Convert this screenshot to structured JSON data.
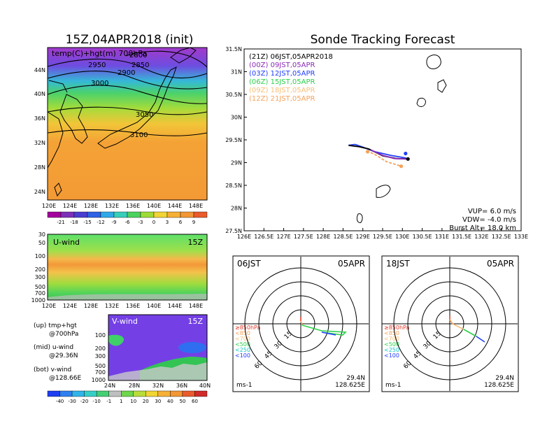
{
  "colors": {
    "purple": "#8c2ab8",
    "pink": "#d65aa5",
    "orange": "#f5a25a",
    "orange_light": "#f8c07a",
    "green": "#2bd14a",
    "blue": "#1f3cff",
    "red": "#e23a2a",
    "black": "#000000"
  },
  "top_left": {
    "title": "15Z,04APR2018 (init)",
    "label": "temp(C)+hgt(m) 700hPa",
    "y_ticks": [
      "44N",
      "40N",
      "36N",
      "32N",
      "28N",
      "24N"
    ],
    "x_ticks": [
      "120E",
      "124E",
      "128E",
      "132E",
      "136E",
      "140E",
      "144E",
      "148E"
    ],
    "contours": [
      "2800",
      "2850",
      "2900",
      "2950",
      "3000",
      "3050",
      "3100"
    ],
    "colorbar_ticks": [
      "-21",
      "-18",
      "-15",
      "-12",
      "-9",
      "-6",
      "-3",
      "0",
      "3",
      "6",
      "9"
    ]
  },
  "mid_left": {
    "label": "U-wind",
    "time": "15Z",
    "y_ticks": [
      "30",
      "50",
      "100",
      "200",
      "300",
      "500",
      "700",
      "1000"
    ],
    "x_ticks": [
      "120E",
      "124E",
      "128E",
      "132E",
      "136E",
      "140E",
      "144E",
      "148E"
    ]
  },
  "bot_left": {
    "label": "V-wind",
    "time": "15Z",
    "y_ticks": [
      "100",
      "200",
      "300",
      "500",
      "700",
      "1000"
    ],
    "x_ticks": [
      "24N",
      "28N",
      "32N",
      "36N",
      "40N"
    ],
    "colorbar_ticks": [
      "-40",
      "-30",
      "-20",
      "-10",
      "-1",
      "1",
      "10",
      "20",
      "30",
      "40",
      "50",
      "60"
    ]
  },
  "legend_notes": [
    {
      "line1": "(up) tmp+hgt",
      "line2": "@700hPa"
    },
    {
      "line1": "(mid) u-wind",
      "line2": "@29.36N"
    },
    {
      "line1": "(bot) v-wind",
      "line2": "@128.66E"
    }
  ],
  "chart_data": {
    "type": "line",
    "title": "Sonde Tracking Forecast",
    "x_ticks": [
      "126E",
      "126.5E",
      "127E",
      "127.5E",
      "128E",
      "128.5E",
      "129E",
      "129.5E",
      "130E",
      "130.5E",
      "131E",
      "131.5E",
      "132E",
      "132.5E",
      "133E"
    ],
    "y_ticks": [
      "31.5N",
      "31N",
      "30.5N",
      "30N",
      "29.5N",
      "29N",
      "28.5N",
      "28N",
      "27.5N"
    ],
    "xlim": [
      126,
      133
    ],
    "ylim": [
      27.5,
      31.5
    ],
    "legend_placement": "top-left",
    "legend": [
      {
        "code": "(21Z)",
        "time": "06JST,05APR2018",
        "color": "#000000"
      },
      {
        "code": "(00Z)",
        "time": "09JST,05APR",
        "color": "#8c2ab8"
      },
      {
        "code": "(03Z)",
        "time": "12JST,05APR",
        "color": "#1f3cff"
      },
      {
        "code": "(06Z)",
        "time": "15JST,05APR",
        "color": "#2bd14a"
      },
      {
        "code": "(09Z)",
        "time": "18JST,05APR",
        "color": "#f8c07a"
      },
      {
        "code": "(12Z)",
        "time": "21JST,05APR",
        "color": "#f5a25a"
      }
    ],
    "series": [
      {
        "color": "#1f3cff",
        "points": [
          [
            128.64,
            29.38
          ],
          [
            128.8,
            29.4
          ],
          [
            129.0,
            29.34
          ],
          [
            129.3,
            29.24
          ],
          [
            129.7,
            29.16
          ],
          [
            130.1,
            29.1
          ]
        ]
      },
      {
        "color": "#000000",
        "points": [
          [
            128.64,
            29.38
          ],
          [
            128.9,
            29.35
          ],
          [
            129.15,
            29.3
          ],
          [
            129.5,
            29.15
          ],
          [
            129.85,
            29.09
          ],
          [
            130.14,
            29.08
          ]
        ]
      },
      {
        "color": "#8c2ab8",
        "points": [
          [
            129.2,
            29.28
          ],
          [
            129.5,
            29.16
          ],
          [
            129.8,
            29.09
          ],
          [
            130.1,
            29.08
          ]
        ]
      },
      {
        "color": "#f5a25a",
        "points": [
          [
            129.1,
            29.26
          ],
          [
            129.3,
            29.18
          ],
          [
            129.6,
            29.02
          ],
          [
            129.97,
            28.92
          ]
        ]
      }
    ],
    "markers": [
      {
        "lon": 130.08,
        "lat": 29.2,
        "color": "#1f3cff"
      },
      {
        "lon": 129.97,
        "lat": 28.92,
        "color": "#f5a25a"
      },
      {
        "lon": 129.12,
        "lat": 29.24,
        "color": "#f5a25a"
      },
      {
        "lon": 130.14,
        "lat": 29.08,
        "color": "#000000"
      }
    ],
    "stats": [
      "VUP= 6.0 m/s",
      "VDW= -4.0 m/s",
      "Burst Alt= 18.0 km"
    ]
  },
  "polar_left": {
    "time": "06JST",
    "date": "05APR",
    "ring_labels": [
      "15",
      "30",
      "45",
      "60"
    ],
    "levels": [
      {
        "text": "≥850hPa",
        "color": "#e23a2a"
      },
      {
        "text": "<850",
        "color": "#f5a25a"
      },
      {
        "text": "<700",
        "color": "#f8c07a"
      },
      {
        "text": "<500",
        "color": "#2bd14a"
      },
      {
        "text": "<250",
        "color": "#17c5c5"
      },
      {
        "text": "<100",
        "color": "#1f3cff"
      }
    ],
    "units": "ms-1",
    "lat": "29.4N",
    "lon": "128.625E"
  },
  "polar_right": {
    "time": "18JST",
    "date": "05APR",
    "ring_labels": [
      "15",
      "30",
      "45",
      "60"
    ],
    "levels": [
      {
        "text": "≥850hPa",
        "color": "#e23a2a"
      },
      {
        "text": "<850",
        "color": "#f5a25a"
      },
      {
        "text": "<700",
        "color": "#f8c07a"
      },
      {
        "text": "<500",
        "color": "#2bd14a"
      },
      {
        "text": "<250",
        "color": "#17c5c5"
      },
      {
        "text": "<100",
        "color": "#1f3cff"
      }
    ],
    "units": "ms-1",
    "lat": "29.4N",
    "lon": "128.625E"
  }
}
